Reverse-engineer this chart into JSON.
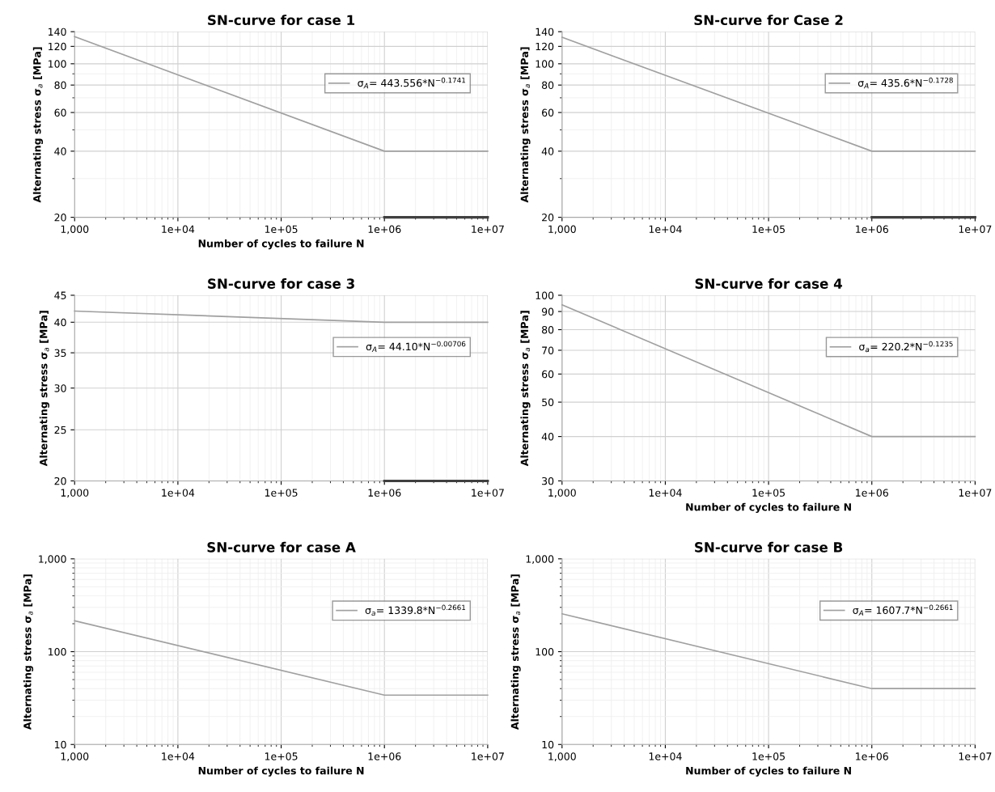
{
  "chart_data": [
    {
      "type": "line",
      "title": "SN-curve for case 1",
      "xlabel": "Number of cycles to failure N",
      "ylabel": "Alternating stress σ$_{a}$ [MPa]",
      "log": "xy",
      "grid": true,
      "legend": "top right",
      "x": [
        1000,
        1000000,
        10000000
      ],
      "xlim": [
        1000,
        10000000
      ],
      "xticks": [
        {
          "value": 1000,
          "label": "1,000"
        },
        {
          "value": 10000,
          "label": "1e+04"
        },
        {
          "value": 100000,
          "label": "1e+05"
        },
        {
          "value": 1000000,
          "label": "1e+06"
        },
        {
          "value": 10000000,
          "label": "1e+07"
        }
      ],
      "ylim": [
        20,
        140
      ],
      "yticks": [
        20,
        40,
        60,
        80,
        100,
        120,
        140
      ],
      "series": [
        {
          "name": "σ$_{A}$= 443.556*N$^{−0.1741}$",
          "color": "#a0a0a0",
          "values": [
            133,
            40,
            40
          ]
        },
        {
          "color": "#404040",
          "values": [
            null,
            20,
            20
          ]
        }
      ]
    },
    {
      "type": "line",
      "title": "SN-curve for Case 2",
      "ylabel": "Alternating stress σ$_{a}$ [MPa]",
      "log": "xy",
      "grid": true,
      "legend": "top right",
      "x": [
        1000,
        1000000,
        10000000
      ],
      "xlim": [
        1000,
        10000000
      ],
      "xticks": [
        {
          "value": 1000,
          "label": "1,000"
        },
        {
          "value": 10000,
          "label": "1e+04"
        },
        {
          "value": 100000,
          "label": "1e+05"
        },
        {
          "value": 1000000,
          "label": "1e+06"
        },
        {
          "value": 10000000,
          "label": "1e+07"
        }
      ],
      "ylim": [
        20,
        140
      ],
      "yticks": [
        20,
        40,
        60,
        80,
        100,
        120,
        140
      ],
      "series": [
        {
          "name": "σ$_{A}$= 435.6*N$^{−0.1728}$",
          "color": "#a0a0a0",
          "values": [
            132,
            40,
            40
          ]
        },
        {
          "color": "#404040",
          "values": [
            null,
            20,
            20
          ]
        }
      ]
    },
    {
      "type": "line",
      "title": "SN-curve for case 3",
      "ylabel": "Alternating stress σ$_{a}$ [MPa]",
      "log": "xy",
      "grid": true,
      "legend": "top right",
      "x": [
        1000,
        1000000,
        10000000
      ],
      "xlim": [
        1000,
        10000000
      ],
      "xticks": [
        {
          "value": 1000,
          "label": "1,000"
        },
        {
          "value": 10000,
          "label": "1e+04"
        },
        {
          "value": 100000,
          "label": "1e+05"
        },
        {
          "value": 1000000,
          "label": "1e+06"
        },
        {
          "value": 10000000,
          "label": "1e+07"
        }
      ],
      "ylim": [
        20,
        45
      ],
      "yticks": [
        20,
        25,
        30,
        35,
        40,
        45
      ],
      "series": [
        {
          "name": "σ$_{A}$= 44.10*N$^{−0.00706}$",
          "color": "#a0a0a0",
          "values": [
            42,
            40,
            40
          ]
        },
        {
          "color": "#404040",
          "values": [
            null,
            20,
            20
          ]
        }
      ]
    },
    {
      "type": "line",
      "title": "SN-curve for case 4",
      "xlabel": "Number of cycles to failure N",
      "ylabel": "Alternating stress σ$_{a}$ [MPa]",
      "log": "xy",
      "grid": true,
      "legend": "top right",
      "x": [
        1000,
        1000000,
        10000000
      ],
      "xlim": [
        1000,
        10000000
      ],
      "xticks": [
        {
          "value": 1000,
          "label": "1,000"
        },
        {
          "value": 10000,
          "label": "1e+04"
        },
        {
          "value": 100000,
          "label": "1e+05"
        },
        {
          "value": 1000000,
          "label": "1e+06"
        },
        {
          "value": 10000000,
          "label": "1e+07"
        }
      ],
      "ylim": [
        30,
        100
      ],
      "yticks": [
        30,
        40,
        50,
        60,
        70,
        80,
        90,
        100
      ],
      "series": [
        {
          "name": "σ$_{a}$= 220.2*N$^{−0.1235}$",
          "color": "#a0a0a0",
          "values": [
            94,
            40,
            40
          ]
        }
      ]
    },
    {
      "type": "line",
      "title": "SN-curve for case A",
      "xlabel": "Number of cycles to failure N",
      "ylabel": "Alternating stress σ$_{a}$ [MPa]",
      "log": "xy",
      "grid": true,
      "legend": "top right",
      "x": [
        1000,
        1000000,
        10000000
      ],
      "xlim": [
        1000,
        10000000
      ],
      "xticks": [
        {
          "value": 1000,
          "label": "1,000"
        },
        {
          "value": 10000,
          "label": "1e+04"
        },
        {
          "value": 100000,
          "label": "1e+05"
        },
        {
          "value": 1000000,
          "label": "1e+06"
        },
        {
          "value": 10000000,
          "label": "1e+07"
        }
      ],
      "ylim": [
        10,
        1000
      ],
      "yticks": [
        10,
        100,
        {
          "value": 1000,
          "label": "1,000"
        }
      ],
      "series": [
        {
          "name": "σ$_{a}$= 1339.8*N$^{−0.2661}$",
          "color": "#a0a0a0",
          "values": [
            215,
            34,
            34
          ]
        }
      ]
    },
    {
      "type": "line",
      "title": "SN-curve for case B",
      "xlabel": "Number of cycles to failure N",
      "ylabel": "Alternating stress σ$_{a}$ [MPa]",
      "log": "xy",
      "grid": true,
      "legend": "top right",
      "x": [
        1000,
        1000000,
        10000000
      ],
      "xlim": [
        1000,
        10000000
      ],
      "xticks": [
        {
          "value": 1000,
          "label": "1,000"
        },
        {
          "value": 10000,
          "label": "1e+04"
        },
        {
          "value": 100000,
          "label": "1e+05"
        },
        {
          "value": 1000000,
          "label": "1e+06"
        },
        {
          "value": 10000000,
          "label": "1e+07"
        }
      ],
      "ylim": [
        10,
        1000
      ],
      "yticks": [
        10,
        100,
        {
          "value": 1000,
          "label": "1,000"
        }
      ],
      "series": [
        {
          "name": "σ$_{A}$= 1607.7*N$^{−0.2661}$",
          "color": "#a0a0a0",
          "values": [
            256,
            40,
            40
          ]
        }
      ]
    }
  ]
}
